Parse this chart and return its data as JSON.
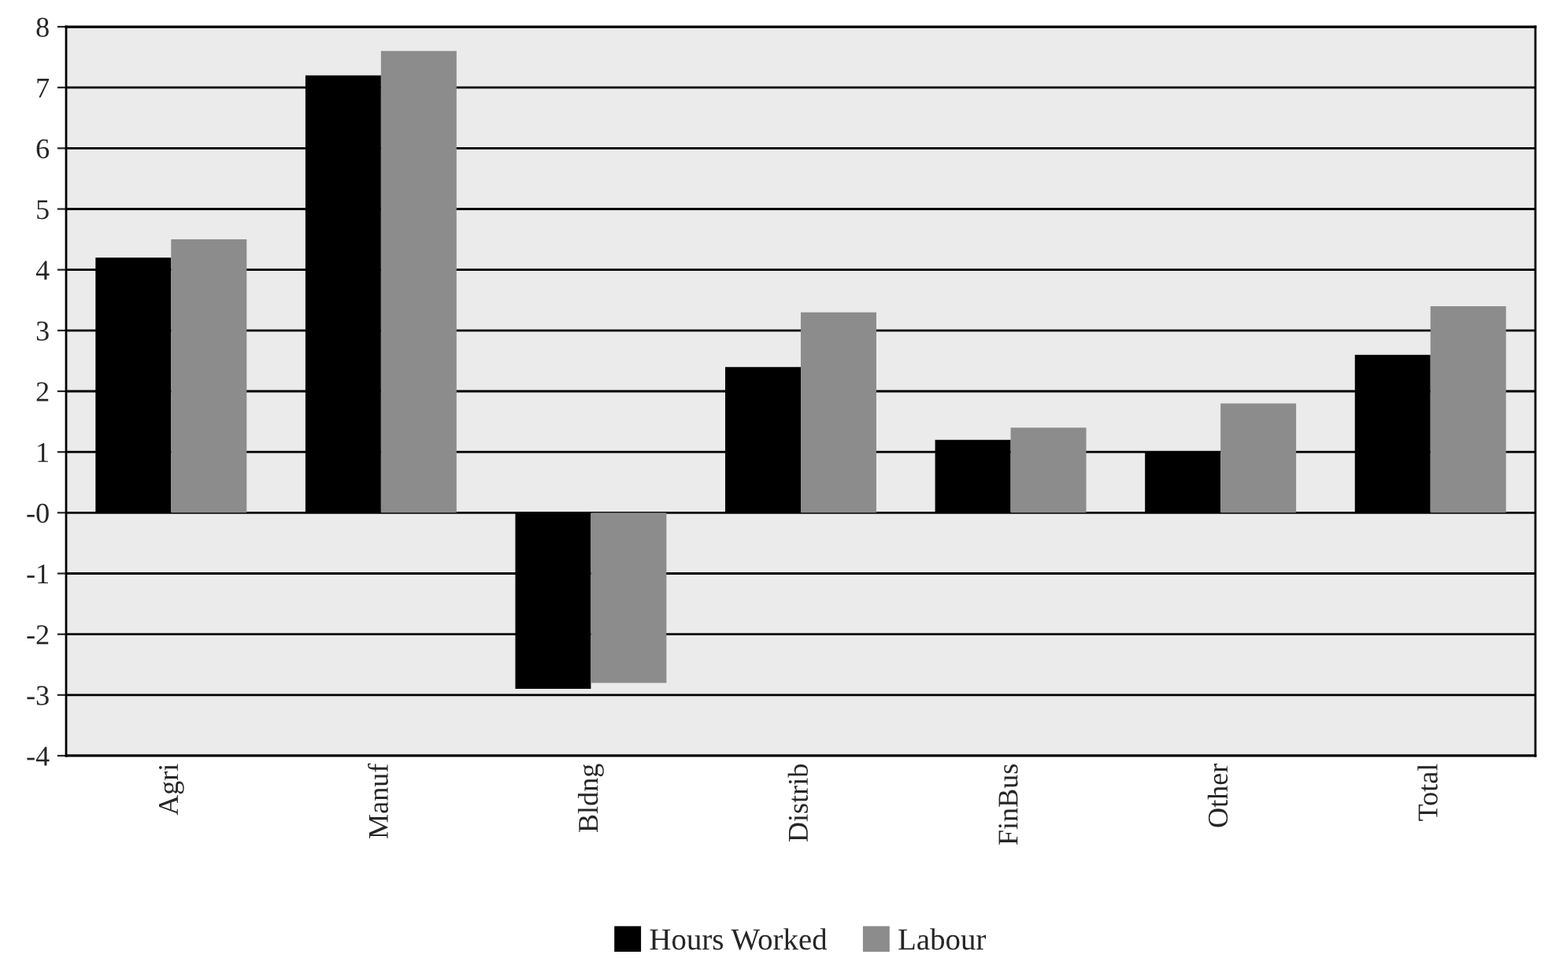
{
  "chart_data": {
    "type": "bar",
    "categories": [
      "Agri",
      "Manuf",
      "Bldng",
      "Distrib",
      "FinBus",
      "Other",
      "Total"
    ],
    "series": [
      {
        "name": "Hours Worked",
        "color": "#000000",
        "values": [
          4.2,
          7.2,
          -2.9,
          2.4,
          1.2,
          1.0,
          2.6
        ]
      },
      {
        "name": "Labour",
        "color": "#8c8c8c",
        "values": [
          4.5,
          7.6,
          -2.8,
          3.3,
          1.4,
          1.8,
          3.4
        ]
      }
    ],
    "ylim": [
      -4,
      8
    ],
    "yticks": [
      {
        "value": -4,
        "label": "-4"
      },
      {
        "value": -3,
        "label": "-3"
      },
      {
        "value": -2,
        "label": "-2"
      },
      {
        "value": -1,
        "label": "-1"
      },
      {
        "value": 0,
        "label": "-0"
      },
      1,
      2,
      3,
      4,
      5,
      6,
      7,
      8
    ],
    "grid": "y",
    "legend": "bottom"
  }
}
